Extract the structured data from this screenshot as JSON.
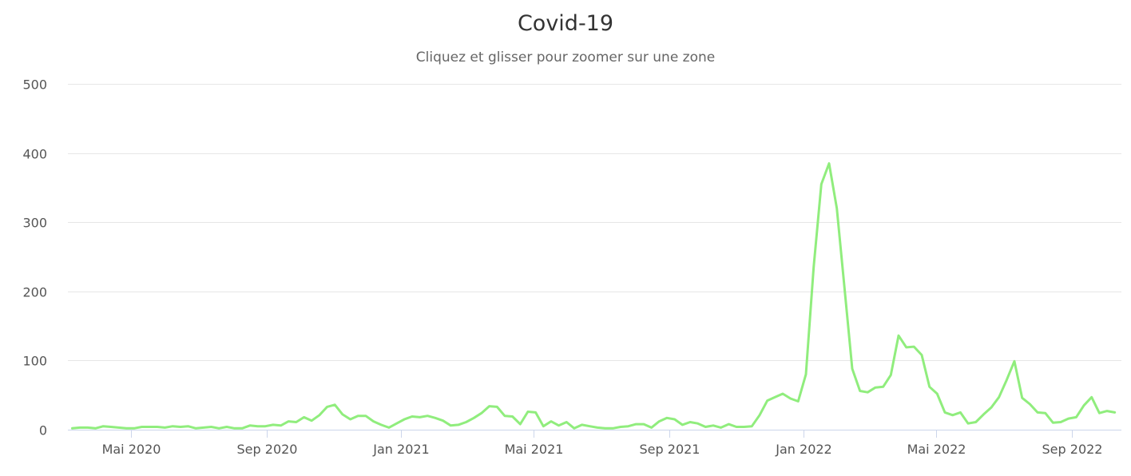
{
  "chart_data": {
    "type": "line",
    "title": "Covid-19",
    "subtitle": "Cliquez et glisser pour zoomer sur une zone",
    "ylim": [
      0,
      500
    ],
    "yticks": [
      0,
      100,
      200,
      300,
      400,
      500
    ],
    "xlim": [
      "2020-03-05",
      "2022-10-16"
    ],
    "xticks": [
      {
        "label": "Mai 2020",
        "date": "2020-05-01"
      },
      {
        "label": "Sep 2020",
        "date": "2020-09-01"
      },
      {
        "label": "Jan 2021",
        "date": "2021-01-01"
      },
      {
        "label": "Mai 2021",
        "date": "2021-05-01"
      },
      {
        "label": "Sep 2021",
        "date": "2021-09-01"
      },
      {
        "label": "Jan 2022",
        "date": "2022-01-01"
      },
      {
        "label": "Mai 2022",
        "date": "2022-05-01"
      },
      {
        "label": "Sep 2022",
        "date": "2022-09-01"
      }
    ],
    "grid": true,
    "series": [
      {
        "color": "#90ed7d",
        "x": [
          "2020-03-09",
          "2020-03-16",
          "2020-03-23",
          "2020-03-30",
          "2020-04-06",
          "2020-04-13",
          "2020-04-20",
          "2020-04-27",
          "2020-05-04",
          "2020-05-11",
          "2020-05-18",
          "2020-05-25",
          "2020-06-01",
          "2020-06-08",
          "2020-06-15",
          "2020-06-22",
          "2020-06-29",
          "2020-07-06",
          "2020-07-13",
          "2020-07-20",
          "2020-07-27",
          "2020-08-03",
          "2020-08-10",
          "2020-08-17",
          "2020-08-24",
          "2020-08-31",
          "2020-09-07",
          "2020-09-14",
          "2020-09-21",
          "2020-09-28",
          "2020-10-05",
          "2020-10-12",
          "2020-10-19",
          "2020-10-26",
          "2020-11-02",
          "2020-11-09",
          "2020-11-16",
          "2020-11-23",
          "2020-11-30",
          "2020-12-07",
          "2020-12-14",
          "2020-12-21",
          "2020-12-28",
          "2021-01-04",
          "2021-01-11",
          "2021-01-18",
          "2021-01-25",
          "2021-02-01",
          "2021-02-08",
          "2021-02-15",
          "2021-02-22",
          "2021-03-01",
          "2021-03-08",
          "2021-03-15",
          "2021-03-22",
          "2021-03-29",
          "2021-04-05",
          "2021-04-12",
          "2021-04-19",
          "2021-04-26",
          "2021-05-03",
          "2021-05-10",
          "2021-05-17",
          "2021-05-24",
          "2021-05-31",
          "2021-06-07",
          "2021-06-14",
          "2021-06-21",
          "2021-06-28",
          "2021-07-05",
          "2021-07-12",
          "2021-07-19",
          "2021-07-26",
          "2021-08-02",
          "2021-08-09",
          "2021-08-16",
          "2021-08-23",
          "2021-08-30",
          "2021-09-06",
          "2021-09-13",
          "2021-09-20",
          "2021-09-27",
          "2021-10-04",
          "2021-10-11",
          "2021-10-18",
          "2021-10-25",
          "2021-11-01",
          "2021-11-08",
          "2021-11-15",
          "2021-11-22",
          "2021-11-29",
          "2021-12-06",
          "2021-12-13",
          "2021-12-20",
          "2021-12-27",
          "2022-01-03",
          "2022-01-10",
          "2022-01-17",
          "2022-01-24",
          "2022-01-31",
          "2022-02-07",
          "2022-02-14",
          "2022-02-21",
          "2022-02-28",
          "2022-03-07",
          "2022-03-14",
          "2022-03-21",
          "2022-03-28",
          "2022-04-04",
          "2022-04-11",
          "2022-04-18",
          "2022-04-25",
          "2022-05-02",
          "2022-05-09",
          "2022-05-16",
          "2022-05-23",
          "2022-05-30",
          "2022-06-06",
          "2022-06-13",
          "2022-06-20",
          "2022-06-27",
          "2022-07-04",
          "2022-07-11",
          "2022-07-18",
          "2022-07-25",
          "2022-08-01",
          "2022-08-08",
          "2022-08-15",
          "2022-08-22",
          "2022-08-29",
          "2022-09-05",
          "2022-09-12",
          "2022-09-19",
          "2022-09-26",
          "2022-10-03",
          "2022-10-10"
        ],
        "values": [
          2,
          3,
          3,
          2,
          5,
          4,
          3,
          2,
          2,
          4,
          4,
          4,
          3,
          5,
          4,
          5,
          2,
          3,
          4,
          2,
          4,
          2,
          2,
          6,
          5,
          5,
          7,
          6,
          12,
          11,
          18,
          13,
          21,
          33,
          36,
          22,
          15,
          20,
          20,
          12,
          7,
          3,
          9,
          15,
          19,
          18,
          20,
          17,
          13,
          6,
          7,
          11,
          17,
          24,
          34,
          33,
          20,
          19,
          8,
          26,
          25,
          5,
          12,
          6,
          11,
          2,
          7,
          5,
          3,
          2,
          2,
          4,
          5,
          8,
          8,
          3,
          12,
          17,
          15,
          7,
          11,
          9,
          4,
          6,
          3,
          8,
          4,
          4,
          5,
          21,
          42,
          47,
          52,
          45,
          41,
          80,
          235,
          355,
          385,
          320,
          205,
          88,
          56,
          54,
          61,
          62,
          79,
          136,
          119,
          120,
          108,
          62,
          52,
          25,
          21,
          25,
          9,
          11,
          22,
          32,
          47,
          72,
          99,
          46,
          37,
          25,
          24,
          10,
          11,
          16,
          18,
          35,
          47,
          24,
          27,
          25
        ]
      }
    ]
  }
}
